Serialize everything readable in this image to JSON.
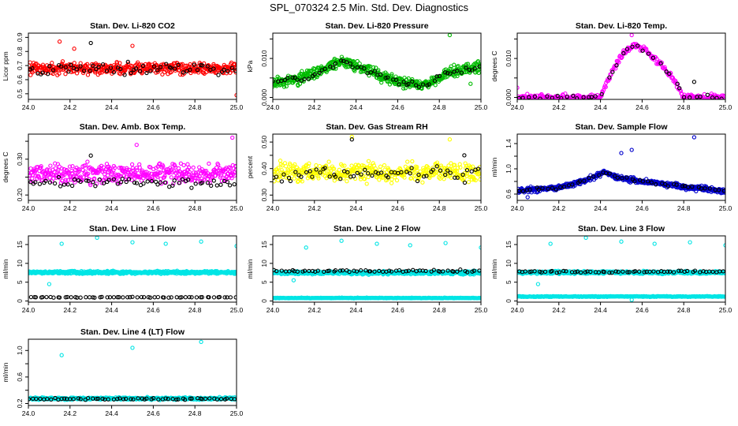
{
  "main_title": "SPL_070324  2.5 Min. Std. Dev. Diagnostics",
  "chart_data": [
    {
      "type": "scatter",
      "title": "Stan. Dev. Li-820 CO2",
      "ylabel": "Licor ppm",
      "xlim": [
        24.0,
        25.0
      ],
      "ylim": [
        0.46,
        0.93
      ],
      "yticks": [
        0.5,
        0.6,
        0.7,
        0.8,
        0.9
      ],
      "ytick_labels": [
        "0.5",
        "0.6",
        "0.7",
        "0.8",
        "0.9"
      ],
      "xticks": [
        24.0,
        24.2,
        24.4,
        24.6,
        24.8,
        25.0
      ],
      "xtick_labels": [
        "24.0",
        "24.2",
        "24.4",
        "24.6",
        "24.8",
        "25.0"
      ],
      "series": [
        {
          "color": "#ff0000",
          "n": 420,
          "base": 0.68,
          "spread": 0.06,
          "outliers": [
            [
              24.15,
              0.87
            ],
            [
              24.22,
              0.82
            ],
            [
              24.5,
              0.84
            ],
            [
              25.0,
              0.49
            ]
          ]
        },
        {
          "color": "#000000",
          "n": 60,
          "base": 0.68,
          "spread": 0.06,
          "outliers": [
            [
              24.3,
              0.86
            ]
          ]
        }
      ]
    },
    {
      "type": "scatter",
      "title": "Stan. Dev. Li-820 Pressure",
      "ylabel": "kPa",
      "xlim": [
        24.0,
        25.0
      ],
      "ylim": [
        -0.0005,
        0.0165
      ],
      "yticks": [
        0.0,
        0.005,
        0.01,
        0.015
      ],
      "ytick_labels": [
        "0.000",
        "",
        "0.010",
        ""
      ],
      "xticks": [
        24.0,
        24.2,
        24.4,
        24.6,
        24.8,
        25.0
      ],
      "xtick_labels": [
        "24.0",
        "24.2",
        "24.4",
        "24.6",
        "24.8",
        "25.0"
      ],
      "series": [
        {
          "color": "#00bb00",
          "n": 520,
          "profile": [
            [
              24.0,
              0.004
            ],
            [
              24.1,
              0.0045
            ],
            [
              24.2,
              0.006
            ],
            [
              24.33,
              0.0095
            ],
            [
              24.45,
              0.007
            ],
            [
              24.6,
              0.004
            ],
            [
              24.72,
              0.003
            ],
            [
              24.85,
              0.0065
            ],
            [
              25.0,
              0.0075
            ]
          ],
          "spread": 0.0022,
          "outliers": [
            [
              24.85,
              0.016
            ],
            [
              24.95,
              0.0035
            ]
          ]
        },
        {
          "color": "#000000",
          "n": 60,
          "profile": [
            [
              24.0,
              0.004
            ],
            [
              24.1,
              0.0045
            ],
            [
              24.2,
              0.006
            ],
            [
              24.33,
              0.0095
            ],
            [
              24.45,
              0.007
            ],
            [
              24.6,
              0.004
            ],
            [
              24.72,
              0.003
            ],
            [
              24.85,
              0.0065
            ],
            [
              25.0,
              0.0075
            ]
          ],
          "spread": 0.0012,
          "outliers": []
        }
      ]
    },
    {
      "type": "scatter",
      "title": "Stan. Dev. Li-820 Temp.",
      "ylabel": "degrees C",
      "xlim": [
        24.0,
        25.0
      ],
      "ylim": [
        -0.0005,
        0.0165
      ],
      "yticks": [
        0.0,
        0.005,
        0.01,
        0.015
      ],
      "ytick_labels": [
        "0.000",
        "",
        "0.010",
        ""
      ],
      "xticks": [
        24.0,
        24.2,
        24.4,
        24.6,
        24.8,
        25.0
      ],
      "xtick_labels": [
        "24.0",
        "24.2",
        "24.4",
        "24.6",
        "24.8",
        "25.0"
      ],
      "series": [
        {
          "color": "#ff00ff",
          "n": 300,
          "profile": [
            [
              24.0,
              0.0
            ],
            [
              24.4,
              0.0
            ],
            [
              24.43,
              0.004
            ],
            [
              24.5,
              0.011
            ],
            [
              24.56,
              0.0135
            ],
            [
              24.62,
              0.012
            ],
            [
              24.7,
              0.008
            ],
            [
              24.76,
              0.004
            ],
            [
              24.8,
              0.0
            ],
            [
              25.0,
              0.0
            ]
          ],
          "spread": 0.0012,
          "outliers": [
            [
              24.0,
              0.0025
            ],
            [
              24.55,
              0.016
            ]
          ]
        },
        {
          "color": "#000000",
          "n": 40,
          "profile": [
            [
              24.0,
              0.0
            ],
            [
              24.4,
              0.0
            ],
            [
              24.43,
              0.004
            ],
            [
              24.5,
              0.011
            ],
            [
              24.56,
              0.0135
            ],
            [
              24.62,
              0.012
            ],
            [
              24.7,
              0.008
            ],
            [
              24.76,
              0.004
            ],
            [
              24.8,
              0.0
            ],
            [
              25.0,
              0.0
            ]
          ],
          "spread": 0.0008,
          "outliers": [
            [
              24.85,
              0.004
            ]
          ]
        }
      ]
    },
    {
      "type": "scatter",
      "title": "Stan. Dev. Amb. Box Temp.",
      "ylabel": "degrees C",
      "xlim": [
        24.0,
        25.0
      ],
      "ylim": [
        0.185,
        0.37
      ],
      "yticks": [
        0.2,
        0.25,
        0.3,
        0.35
      ],
      "ytick_labels": [
        "0.20",
        "",
        "0.30",
        ""
      ],
      "xticks": [
        24.0,
        24.2,
        24.4,
        24.6,
        24.8,
        25.0
      ],
      "xtick_labels": [
        "24.0",
        "24.2",
        "24.4",
        "24.6",
        "24.8",
        "25.0"
      ],
      "series": [
        {
          "color": "#ff00ff",
          "n": 420,
          "base": 0.26,
          "spread": 0.04,
          "outliers": [
            [
              24.98,
              0.36
            ],
            [
              24.52,
              0.34
            ]
          ]
        },
        {
          "color": "#000000",
          "n": 60,
          "base": 0.235,
          "spread": 0.02,
          "outliers": [
            [
              24.3,
              0.31
            ]
          ]
        }
      ]
    },
    {
      "type": "scatter",
      "title": "Stan. Dev. Gas Stream RH",
      "ylabel": "percent",
      "xlim": [
        24.0,
        25.0
      ],
      "ylim": [
        0.28,
        0.53
      ],
      "yticks": [
        0.3,
        0.35,
        0.4,
        0.45,
        0.5
      ],
      "ytick_labels": [
        "0.30",
        "",
        "0.40",
        "",
        "0.50"
      ],
      "xticks": [
        24.0,
        24.2,
        24.4,
        24.6,
        24.8,
        25.0
      ],
      "xtick_labels": [
        "24.0",
        "24.2",
        "24.4",
        "24.6",
        "24.8",
        "25.0"
      ],
      "series": [
        {
          "color": "#ffff00",
          "n": 420,
          "base": 0.385,
          "spread": 0.05,
          "outliers": [
            [
              24.38,
              0.52
            ],
            [
              24.85,
              0.51
            ]
          ]
        },
        {
          "color": "#000000",
          "n": 60,
          "base": 0.38,
          "spread": 0.045,
          "outliers": [
            [
              24.38,
              0.51
            ],
            [
              24.92,
              0.45
            ]
          ]
        }
      ]
    },
    {
      "type": "scatter",
      "title": "Stan. Dev. Sample Flow",
      "ylabel": "ml/min",
      "xlim": [
        24.0,
        25.0
      ],
      "ylim": [
        0.5,
        1.55
      ],
      "yticks": [
        0.6,
        0.8,
        1.0,
        1.2,
        1.4
      ],
      "ytick_labels": [
        "0.6",
        "",
        "1.0",
        "",
        "1.4"
      ],
      "xticks": [
        24.0,
        24.2,
        24.4,
        24.6,
        24.8,
        25.0
      ],
      "xtick_labels": [
        "24.0",
        "24.2",
        "24.4",
        "24.6",
        "24.8",
        "25.0"
      ],
      "series": [
        {
          "color": "#0000cc",
          "n": 480,
          "profile": [
            [
              24.0,
              0.65
            ],
            [
              24.2,
              0.7
            ],
            [
              24.33,
              0.82
            ],
            [
              24.42,
              0.95
            ],
            [
              24.5,
              0.85
            ],
            [
              24.6,
              0.8
            ],
            [
              24.8,
              0.72
            ],
            [
              25.0,
              0.65
            ]
          ],
          "spread": 0.06,
          "outliers": [
            [
              24.85,
              1.5
            ],
            [
              24.55,
              1.3
            ],
            [
              24.5,
              1.25
            ],
            [
              24.05,
              0.55
            ]
          ]
        },
        {
          "color": "#000000",
          "n": 50,
          "profile": [
            [
              24.0,
              0.65
            ],
            [
              24.2,
              0.7
            ],
            [
              24.33,
              0.82
            ],
            [
              24.42,
              0.95
            ],
            [
              24.5,
              0.85
            ],
            [
              24.6,
              0.8
            ],
            [
              24.8,
              0.72
            ],
            [
              25.0,
              0.65
            ]
          ],
          "spread": 0.04,
          "outliers": []
        }
      ]
    },
    {
      "type": "scatter",
      "title": "Stan. Dev. Line 1 Flow",
      "ylabel": "ml/min",
      "xlim": [
        24.0,
        25.0
      ],
      "ylim": [
        -0.3,
        17.3
      ],
      "yticks": [
        0,
        5,
        10,
        15
      ],
      "ytick_labels": [
        "0",
        "5",
        "10",
        "15"
      ],
      "xticks": [
        24.0,
        24.2,
        24.4,
        24.6,
        24.8,
        25.0
      ],
      "xtick_labels": [
        "24.0",
        "24.2",
        "24.4",
        "24.6",
        "24.8",
        "25.0"
      ],
      "series": [
        {
          "color": "#00e5e5",
          "n": 520,
          "base": 7.6,
          "spread": 0.5,
          "outliers": [
            [
              24.16,
              15.2
            ],
            [
              24.33,
              16.8
            ],
            [
              24.5,
              15.6
            ],
            [
              24.66,
              15.2
            ],
            [
              24.83,
              15.8
            ],
            [
              25.0,
              14.6
            ],
            [
              24.1,
              4.5
            ]
          ]
        },
        {
          "color": "#000000",
          "n": 60,
          "base": 1.0,
          "spread": 0.12,
          "outliers": []
        }
      ]
    },
    {
      "type": "scatter",
      "title": "Stan. Dev. Line 2 Flow",
      "ylabel": "ml/min",
      "xlim": [
        24.0,
        25.0
      ],
      "ylim": [
        -0.3,
        17.3
      ],
      "yticks": [
        0,
        5,
        10,
        15
      ],
      "ytick_labels": [
        "0",
        "5",
        "10",
        "15"
      ],
      "xticks": [
        24.0,
        24.2,
        24.4,
        24.6,
        24.8,
        25.0
      ],
      "xtick_labels": [
        "24.0",
        "24.2",
        "24.4",
        "24.6",
        "24.8",
        "25.0"
      ],
      "series": [
        {
          "color": "#00e5e5",
          "n": 520,
          "base": 7.5,
          "spread": 0.6,
          "outliers": [
            [
              24.16,
              14.2
            ],
            [
              24.33,
              16.0
            ],
            [
              24.5,
              15.2
            ],
            [
              24.66,
              14.8
            ],
            [
              24.83,
              15.4
            ],
            [
              25.0,
              14.2
            ],
            [
              24.1,
              5.5
            ]
          ]
        },
        {
          "color": "#00e5e5",
          "n": 300,
          "base": 0.8,
          "spread": 0.12,
          "outliers": []
        },
        {
          "color": "#000000",
          "n": 60,
          "base": 8.0,
          "spread": 0.4,
          "outliers": []
        }
      ]
    },
    {
      "type": "scatter",
      "title": "Stan. Dev. Line 3 Flow",
      "ylabel": "ml/min",
      "xlim": [
        24.0,
        25.0
      ],
      "ylim": [
        -0.3,
        17.3
      ],
      "yticks": [
        0,
        5,
        10,
        15
      ],
      "ytick_labels": [
        "0",
        "5",
        "10",
        "15"
      ],
      "xticks": [
        24.0,
        24.2,
        24.4,
        24.6,
        24.8,
        25.0
      ],
      "xtick_labels": [
        "24.0",
        "24.2",
        "24.4",
        "24.6",
        "24.8",
        "25.0"
      ],
      "series": [
        {
          "color": "#00e5e5",
          "n": 520,
          "base": 7.6,
          "spread": 0.5,
          "outliers": [
            [
              24.16,
              15.2
            ],
            [
              24.33,
              16.8
            ],
            [
              24.5,
              15.8
            ],
            [
              24.66,
              15.2
            ],
            [
              24.83,
              15.6
            ],
            [
              25.0,
              14.8
            ],
            [
              24.1,
              4.5
            ]
          ]
        },
        {
          "color": "#00e5e5",
          "n": 300,
          "base": 1.2,
          "spread": 0.15,
          "outliers": [
            [
              24.55,
              0.3
            ]
          ]
        },
        {
          "color": "#000000",
          "n": 60,
          "base": 7.8,
          "spread": 0.4,
          "outliers": []
        }
      ]
    },
    {
      "type": "scatter",
      "title": "Stan. Dev. Line 4 (LT) Flow",
      "ylabel": "ml/min",
      "xlim": [
        24.0,
        25.0
      ],
      "ylim": [
        0.17,
        1.17
      ],
      "yticks": [
        0.2,
        0.4,
        0.6,
        0.8,
        1.0
      ],
      "ytick_labels": [
        "0.2",
        "",
        "0.6",
        "",
        "1.0"
      ],
      "xticks": [
        24.0,
        24.2,
        24.4,
        24.6,
        24.8,
        25.0
      ],
      "xtick_labels": [
        "24.0",
        "24.2",
        "24.4",
        "24.6",
        "24.8",
        "25.0"
      ],
      "series": [
        {
          "color": "#00e5e5",
          "n": 520,
          "base": 0.275,
          "spread": 0.025,
          "outliers": [
            [
              24.83,
              1.13
            ],
            [
              24.5,
              1.04
            ],
            [
              24.16,
              0.93
            ]
          ]
        },
        {
          "color": "#000000",
          "n": 60,
          "base": 0.27,
          "spread": 0.02,
          "outliers": []
        }
      ]
    }
  ]
}
